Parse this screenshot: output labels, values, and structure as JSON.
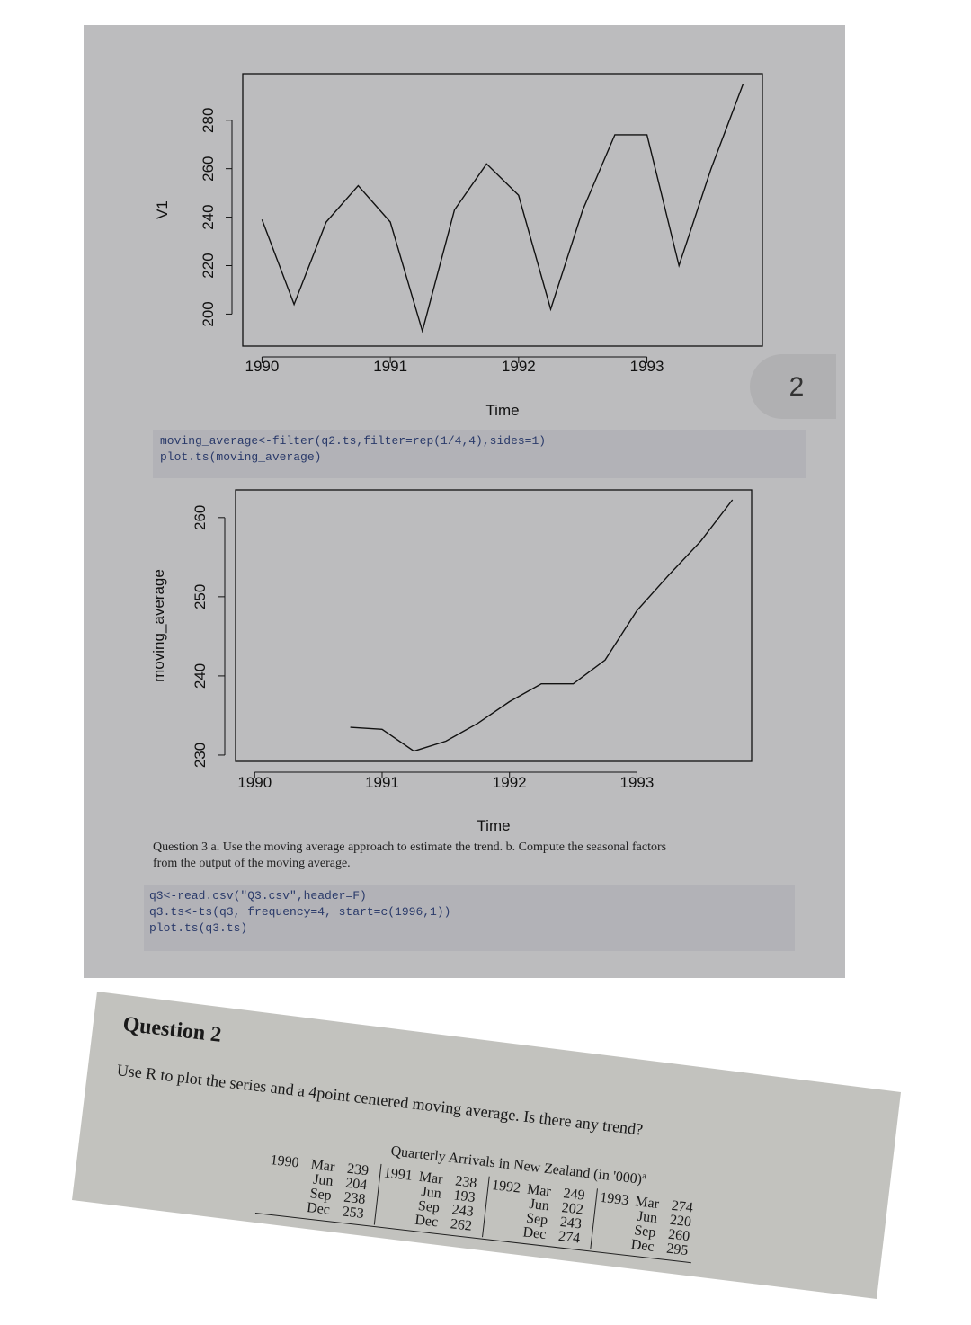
{
  "page_number": "2",
  "chart_data": [
    {
      "type": "line",
      "y_label": "V1",
      "x_label": "Time",
      "x": [
        1990,
        1990.25,
        1990.5,
        1990.75,
        1991,
        1991.25,
        1991.5,
        1991.75,
        1992,
        1992.25,
        1992.5,
        1992.75,
        1993,
        1993.25,
        1993.5,
        1993.75
      ],
      "values": [
        239,
        204,
        238,
        253,
        238,
        193,
        243,
        262,
        249,
        202,
        243,
        274,
        274,
        220,
        260,
        295
      ],
      "color": "#111111",
      "xlim": [
        1989.85,
        1993.9
      ],
      "xticks": [
        1990,
        1991,
        1992,
        1993
      ],
      "ylim": [
        186.8,
        299.2
      ],
      "yticks": [
        200,
        220,
        240,
        260,
        280
      ]
    },
    {
      "type": "line",
      "y_label": "moving_average",
      "x_label": "Time",
      "x": [
        1990,
        1990.25,
        1990.5,
        1990.75,
        1991,
        1991.25,
        1991.5,
        1991.75,
        1992,
        1992.25,
        1992.5,
        1992.75,
        1993,
        1993.25,
        1993.5,
        1993.75
      ],
      "values": [
        null,
        null,
        null,
        233.5,
        233.25,
        230.5,
        231.75,
        234,
        236.75,
        239,
        239,
        242,
        248.25,
        252.75,
        257,
        262.25
      ],
      "color": "#111111",
      "xlim": [
        1989.85,
        1993.9
      ],
      "xticks": [
        1990,
        1991,
        1992,
        1993
      ],
      "ylim": [
        229.2,
        263.5
      ],
      "yticks": [
        230,
        240,
        250,
        260
      ]
    }
  ],
  "code_1": [
    "moving_average<-filter(q2.ts,filter=rep(1/4,4),sides=1)",
    "plot.ts(moving_average)"
  ],
  "question_3": [
    "Question 3 a.  Use the moving average approach to estimate the trend.  b.  Compute the seasonal factors",
    "from the output of the moving average."
  ],
  "code_2": [
    "q3<-read.csv(\"Q3.csv\",header=F)",
    "q3.ts<-ts(q3, frequency=4, start=c(1996,1))",
    "plot.ts(q3.ts)"
  ],
  "question_2": {
    "heading": "Question 2",
    "prompt": "Use R to plot the series and a 4point centered moving average. Is there any trend?",
    "caption": "Quarterly Arrivals in New Zealand (in '000)",
    "footnote_mark": "a",
    "table": [
      {
        "year": "1990",
        "rows": [
          [
            "Mar",
            239
          ],
          [
            "Jun",
            204
          ],
          [
            "Sep",
            238
          ],
          [
            "Dec",
            253
          ]
        ]
      },
      {
        "year": "1991",
        "rows": [
          [
            "Mar",
            238
          ],
          [
            "Jun",
            193
          ],
          [
            "Sep",
            243
          ],
          [
            "Dec",
            262
          ]
        ]
      },
      {
        "year": "1992",
        "rows": [
          [
            "Mar",
            249
          ],
          [
            "Jun",
            202
          ],
          [
            "Sep",
            243
          ],
          [
            "Dec",
            274
          ]
        ]
      },
      {
        "year": "1993",
        "rows": [
          [
            "Mar",
            274
          ],
          [
            "Jun",
            220
          ],
          [
            "Sep",
            260
          ],
          [
            "Dec",
            295
          ]
        ]
      }
    ]
  }
}
